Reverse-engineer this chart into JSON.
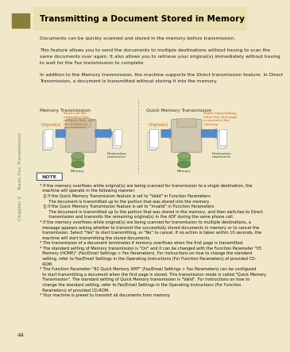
{
  "page_bg": "#f0e8c8",
  "content_bg": "#ffffff",
  "sidebar_bg": "#f0e8c8",
  "sidebar_bar_color": "#8b7d3a",
  "sidebar_text_color": "#6b8e4e",
  "sidebar_text": "Chapter 2    Basic Fax Transmission",
  "page_number": "44",
  "title": "Transmitting a Document Stored in Memory",
  "title_bg": "#e8e0b0",
  "title_color": "#000000",
  "body_text_lines": [
    "Documents can be quickly scanned and stored in the memory before transmission.",
    "",
    "This feature allows you to send the documents to multiple destinations without having to scan the",
    "same documents over again. It also allows you to retrieve your original(s) immediately without having",
    "to wait for the Fax transmission to complete.",
    "",
    "In addition to the Memory transmission, the machine supports the Direct transmission feature. In Direct",
    "Transmission, a document is transmitted without storing it into the memory."
  ],
  "diagram_label_left": "Memory Transmission",
  "diagram_label_right": "Quick Memory Transmission",
  "note_title": "NOTE",
  "note_lines": [
    "* If the memory overflows while original(s) are being scanned for transmission to a single destination, the",
    "  machine will operate in the following manner:",
    "     If the Quick Memory Transmission feature is set to \"Valid\" in Function Parameters",
    "       The document is transmitted up to the portion that was stored into the memory.",
    "     If the Quick Memory Transmission feature is set to \"Invalid\" in Function Parameters",
    "       The document is transmitted up to the portion that was stored in the memory, and then switches to Direct",
    "       transmission and transmits the remaining original(s) in the ADF during the same phone call.",
    "* If the memory overflows while original(s) are being scanned for transmission to multiple destinations, a",
    "  message appears asking whether to transmit the successfully stored documents in memory or to cancel the",
    "  transmission. Select \"Yes\" to start transmitting, or \"No\" to cancel. If no action is taken within 10 seconds, the",
    "  machine will start transmitting the stored documents.",
    "* The transmission of a document terminates if memory overflows when the first page is transmitted.",
    "* The standard setting of Memory transmission is \"On\" and it can be changed with the Function Parameter \"05",
    "  Memory (HOME)\" (Fax/Email Settings > Fax Parameters). For instructions on how to change the standard",
    "  setting, refer to Fax/Email Settings in the Operating Instructions (For Function Parameters) of provided CD-",
    "  ROM.",
    "* The Function Parameter \"82 Quick Memory XMT\" (Fax/Email Settings > Fax Parameters) can be configured",
    "  to start transmitting a document when the first page is stored. This transmission mode is called \"Quick Memory",
    "  Transmission\". The standard setting of Quick Memory transmission is \"Valid\". For instructions on how to",
    "  change the standard setting, refer to Fax/Email Settings in the Operating Instructions (For Function",
    "  Parameters) of provided CD-ROM.",
    "* Your machine is preset to transmit all documents from memory."
  ]
}
